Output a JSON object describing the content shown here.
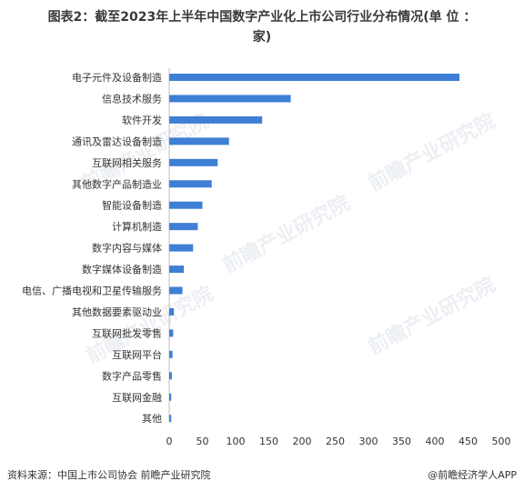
{
  "header": {
    "title_line1": "图表2：截至2023年上半年中国数字产业化上市公司行业分布情况(单 位 ：",
    "title_line2": "家)"
  },
  "footer": {
    "source": "资料来源：中国上市公司协会 前瞻产业研究院",
    "brand": "@前瞻经济学人APP"
  },
  "watermark": {
    "text": "前瞻产业研究院"
  },
  "chart_data": {
    "type": "bar",
    "orientation": "horizontal",
    "title": "图表2：截至2023年上半年中国数字产业化上市公司行业分布情况(单 位 ：家)",
    "categories": [
      "电子元件及设备制造",
      "信息技术服务",
      "软件开发",
      "通讯及雷达设备制造",
      "互联网相关服务",
      "其他数字产品制造业",
      "智能设备制造",
      "计算机制造",
      "数字内容与媒体",
      "数字媒体设备制造",
      "电信、广播电视和卫星传输服务",
      "其他数据要素驱动业",
      "互联网批发零售",
      "互联网平台",
      "数字产品零售",
      "互联网金融",
      "其他"
    ],
    "values": [
      437,
      183,
      140,
      90,
      73,
      64,
      50,
      43,
      36,
      22,
      20,
      7,
      6,
      5,
      4,
      3,
      3
    ],
    "xlim": [
      0,
      500
    ],
    "xticks": [
      0,
      50,
      100,
      150,
      200,
      250,
      300,
      350,
      400,
      450,
      500
    ],
    "bar_color": "#3f7fd6",
    "grid": false
  }
}
